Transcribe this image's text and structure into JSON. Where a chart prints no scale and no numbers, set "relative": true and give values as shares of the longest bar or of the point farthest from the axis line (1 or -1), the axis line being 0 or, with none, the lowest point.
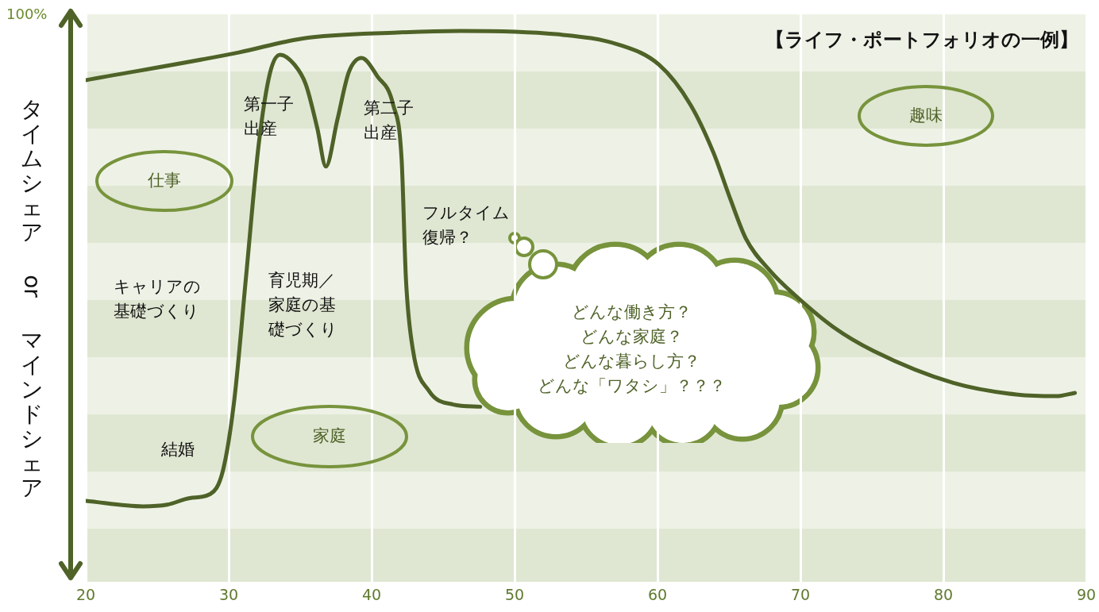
{
  "chart_data": {
    "type": "line",
    "title": "【ライフ・ポートフォリオの一例】",
    "ylabel": "タイムシェア　or　マインドシェア",
    "relative": true,
    "xlim": [
      20,
      90
    ],
    "xticks": [
      20,
      30,
      40,
      50,
      60,
      70,
      80,
      90
    ],
    "grid": "x",
    "marker": "none",
    "line_style": "solid",
    "series": [
      {
        "color": "#4f6228",
        "x": [
          20,
          30.7,
          35.1,
          41.8,
          46.2,
          52.9,
          57.3,
          60.1,
          62.3,
          63.9,
          65.1,
          66.2,
          67.9,
          69.6,
          72.3,
          75.1,
          80.7,
          85.1,
          87.9,
          89.2
        ],
        "values": [
          0.911,
          0.961,
          0.986,
          0.997,
          1,
          0.994,
          0.975,
          0.939,
          0.867,
          0.781,
          0.696,
          0.624,
          0.566,
          0.523,
          0.465,
          0.422,
          0.364,
          0.343,
          0.34,
          0.346
        ]
      },
      {
        "color": "#4f6228",
        "x": [
          20,
          24,
          25.7,
          27.3,
          28.7,
          29.6,
          30.4,
          31.2,
          32.1,
          32.9,
          33.6,
          34.6,
          35.4,
          36.2,
          36.8,
          37.6,
          38.4,
          39.3,
          40.4,
          41.5,
          42.1,
          42.4,
          42.9,
          44,
          45.7,
          47.6
        ],
        "values": [
          0.151,
          0.141,
          0.144,
          0.156,
          0.163,
          0.206,
          0.335,
          0.552,
          0.795,
          0.925,
          0.957,
          0.939,
          0.903,
          0.824,
          0.755,
          0.839,
          0.925,
          0.951,
          0.918,
          0.867,
          0.767,
          0.552,
          0.422,
          0.35,
          0.325,
          0.321
        ]
      }
    ],
    "annotations": [
      "100%",
      "仕事",
      "家庭",
      "趣味",
      "第一子出産",
      "第二子出産",
      "フルタイム復帰？",
      "キャリアの基礎づくり",
      "育児期／家庭の基礎づくり",
      "結婚",
      "どんな働き方？",
      "どんな家庭？",
      "どんな暮らし方？",
      "どんな「ワタシ」？？？"
    ]
  }
}
